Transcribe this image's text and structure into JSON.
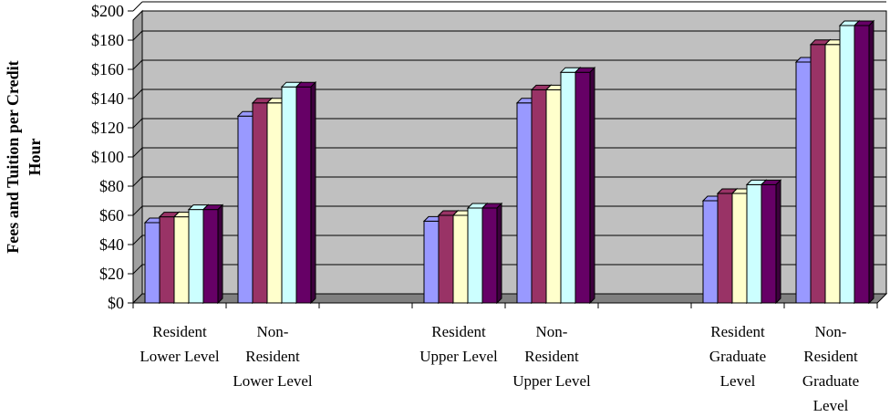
{
  "chart_data": {
    "type": "bar",
    "style": "3d-clustered-column",
    "ylabel_lines": [
      "Fees and Tuition per Credit",
      "Hour"
    ],
    "ylim": [
      0,
      200
    ],
    "ytick_step": 20,
    "ytick_prefix": "$",
    "grid": true,
    "legend": "none",
    "categories": [
      [
        "Resident",
        "Lower Level"
      ],
      [
        "Non-",
        "Resident",
        "Lower Level"
      ],
      [],
      [
        "Resident",
        "Upper Level"
      ],
      [
        "Non-",
        "Resident",
        "Upper Level"
      ],
      [],
      [
        "Resident",
        "Graduate",
        "Level"
      ],
      [
        "Non-",
        "Resident",
        "Graduate",
        "Level"
      ]
    ],
    "series": [
      {
        "color": "#9999ff",
        "values": [
          55,
          128,
          null,
          56,
          137,
          null,
          70,
          165
        ]
      },
      {
        "color": "#993366",
        "values": [
          59,
          137,
          null,
          60,
          146,
          null,
          75,
          177
        ]
      },
      {
        "color": "#ffffcc",
        "values": [
          59,
          137,
          null,
          60,
          146,
          null,
          75,
          177
        ]
      },
      {
        "color": "#ccffff",
        "values": [
          64,
          148,
          null,
          65,
          158,
          null,
          81,
          190
        ]
      },
      {
        "color": "#660066",
        "values": [
          64,
          148,
          null,
          65,
          158,
          null,
          81,
          190
        ]
      }
    ],
    "colors": {
      "wall": "#c0c0c0",
      "floor": "#808080",
      "gridline": "#000000"
    }
  }
}
